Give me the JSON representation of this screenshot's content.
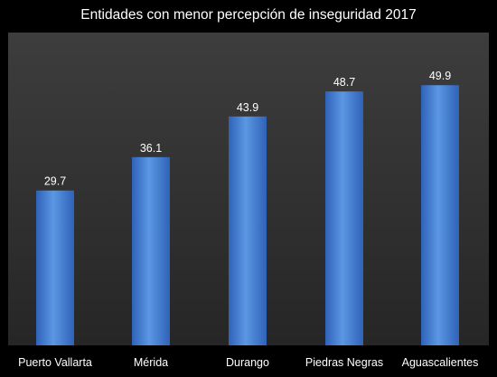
{
  "chart_data": {
    "type": "bar",
    "title": "Entidades con menor percepción de inseguridad 2017",
    "categories": [
      "Puerto Vallarta",
      "Mérida",
      "Durango",
      "Piedras Negras",
      "Aguascalientes"
    ],
    "values": [
      29.7,
      36.1,
      43.9,
      48.7,
      49.9
    ],
    "data_labels": [
      "29.7",
      "36.1",
      "43.9",
      "48.7",
      "49.9"
    ],
    "xlabel": "",
    "ylabel": "",
    "ylim": [
      0,
      60
    ],
    "grid": false,
    "legend": "none",
    "colors": {
      "background": "#000000",
      "plot_area": "#2b2b2b",
      "bar_light": "#5b97e3",
      "bar_dark": "#2f62b8",
      "text": "#ffffff"
    }
  }
}
